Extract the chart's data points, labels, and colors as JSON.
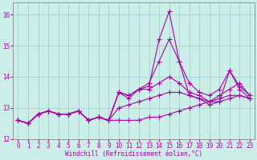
{
  "xlabel": "Windchill (Refroidissement éolien,°C)",
  "background_color": "#cceee8",
  "grid_color": "#99cccc",
  "line_color": "#aa00aa",
  "lines": [
    [
      12.6,
      12.5,
      12.8,
      12.9,
      12.8,
      12.8,
      12.9,
      12.6,
      12.7,
      12.6,
      12.6,
      12.6,
      12.6,
      12.7,
      12.7,
      12.8,
      12.9,
      13.0,
      13.1,
      13.2,
      13.3,
      13.4,
      13.4,
      13.3
    ],
    [
      12.6,
      12.5,
      12.8,
      12.9,
      12.8,
      12.8,
      12.9,
      12.6,
      12.7,
      12.6,
      13.0,
      13.1,
      13.2,
      13.3,
      13.4,
      13.5,
      13.5,
      13.4,
      13.3,
      13.2,
      13.2,
      13.3,
      13.4,
      13.3
    ],
    [
      12.6,
      12.5,
      12.8,
      12.9,
      12.8,
      12.8,
      12.9,
      12.6,
      12.7,
      12.6,
      13.5,
      13.4,
      13.6,
      13.6,
      13.8,
      14.0,
      13.8,
      13.5,
      13.4,
      13.2,
      13.4,
      13.6,
      13.8,
      13.4
    ],
    [
      12.6,
      12.5,
      12.8,
      12.9,
      12.8,
      12.8,
      12.9,
      12.6,
      12.7,
      12.6,
      13.5,
      13.4,
      13.6,
      13.8,
      14.5,
      15.2,
      14.5,
      13.8,
      13.5,
      13.4,
      13.6,
      14.2,
      13.7,
      13.4
    ],
    [
      12.6,
      12.5,
      12.8,
      12.9,
      12.8,
      12.8,
      12.9,
      12.6,
      12.7,
      12.6,
      13.5,
      13.3,
      13.6,
      13.7,
      15.2,
      16.1,
      14.5,
      13.4,
      13.3,
      13.1,
      13.2,
      14.2,
      13.6,
      13.3
    ]
  ],
  "x_data": [
    0,
    1,
    2,
    3,
    4,
    5,
    6,
    7,
    8,
    9,
    10,
    11,
    12,
    13,
    14,
    15,
    16,
    17,
    18,
    19,
    20,
    21,
    22,
    23
  ],
  "ylim": [
    12.0,
    16.4
  ],
  "xlim": [
    -0.5,
    23.5
  ],
  "yticks": [
    12,
    13,
    14,
    15,
    16
  ],
  "xticks": [
    0,
    1,
    2,
    3,
    4,
    5,
    6,
    7,
    8,
    9,
    10,
    11,
    12,
    13,
    14,
    15,
    16,
    17,
    18,
    19,
    20,
    21,
    22,
    23
  ],
  "tick_fontsize": 5.5,
  "xlabel_fontsize": 5.5,
  "marker": "+",
  "markersize": 4,
  "linewidth": 0.8
}
